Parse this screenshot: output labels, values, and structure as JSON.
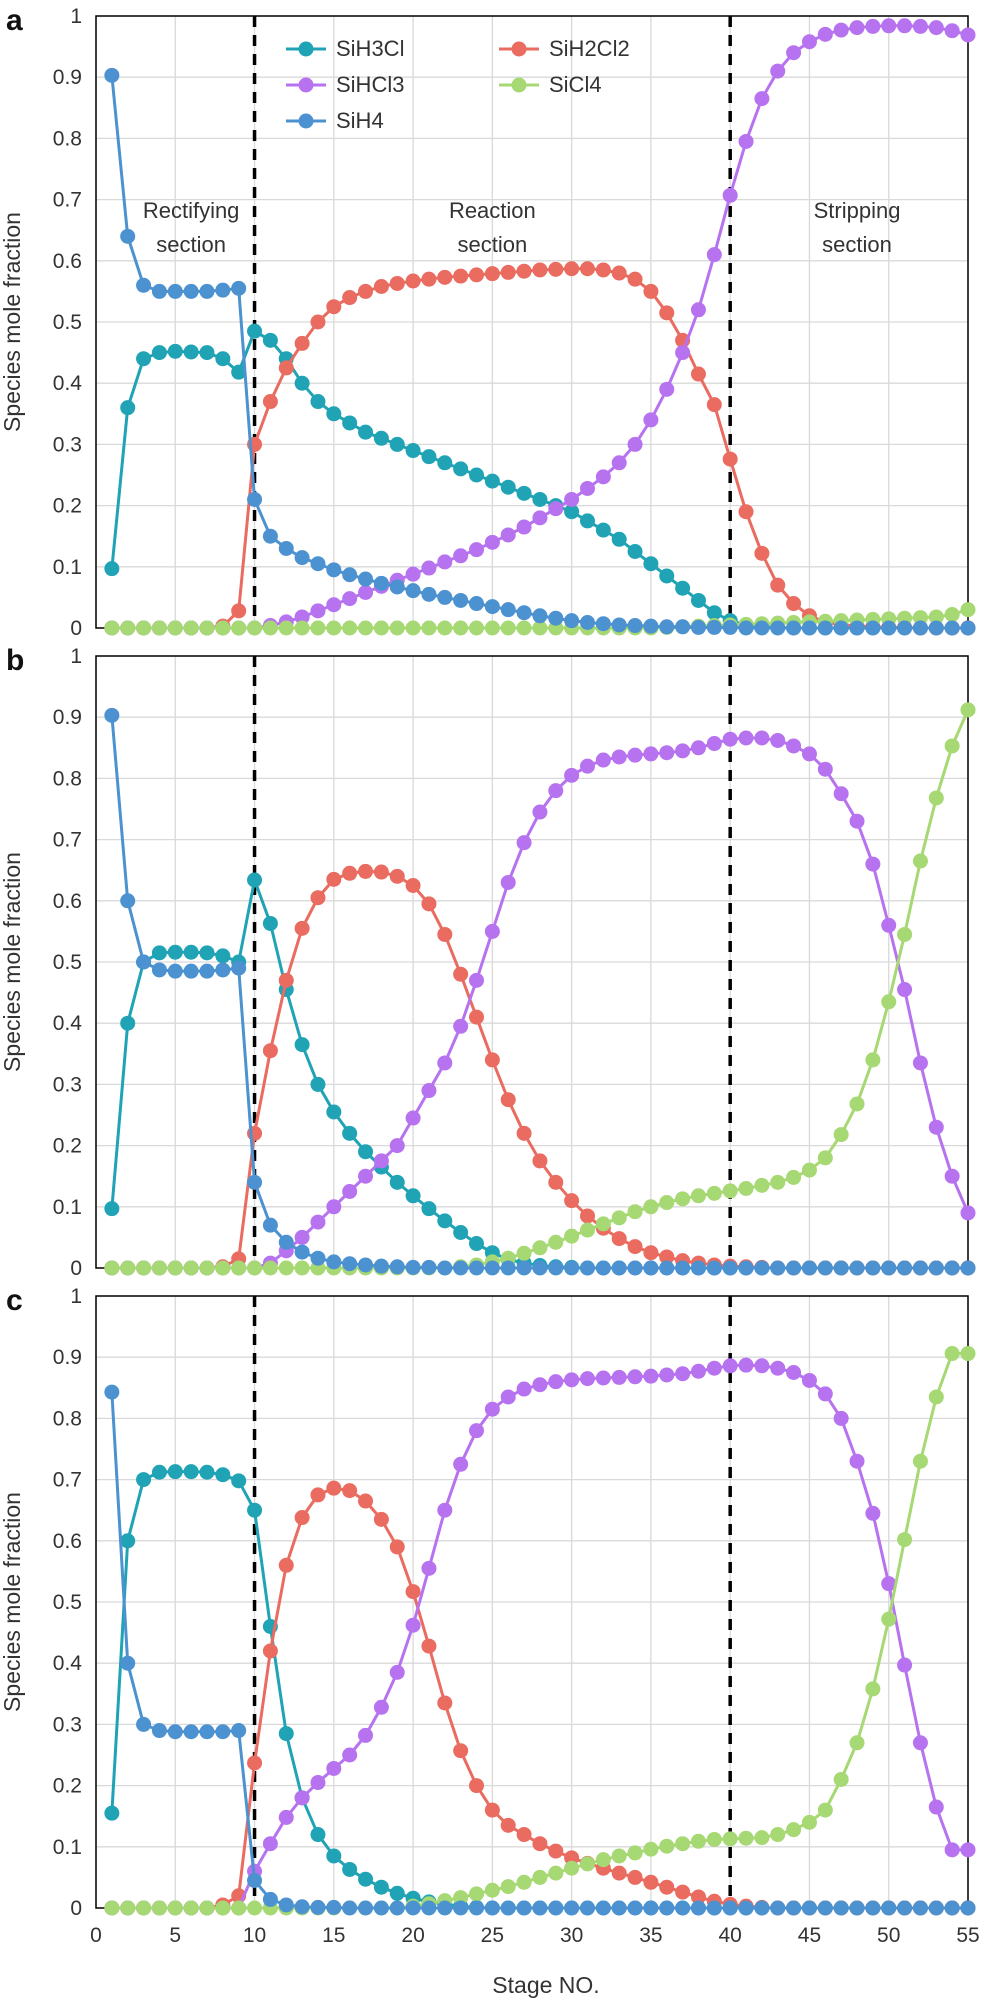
{
  "chart_data": {
    "type": "line",
    "xlabel": "Stage NO.",
    "xlim": [
      0,
      55
    ],
    "x_ticks": [
      "0",
      "5",
      "10",
      "15",
      "20",
      "25",
      "30",
      "35",
      "40",
      "45",
      "50",
      "55"
    ],
    "y_ticks": [
      "0",
      "0.1",
      "0.2",
      "0.3",
      "0.4",
      "0.5",
      "0.6",
      "0.7",
      "0.8",
      "0.9",
      "1"
    ],
    "grid": true,
    "legend": {
      "placement": "top-center of panel a",
      "items": [
        "SiH3Cl",
        "SiH2Cl2",
        "SiHCl3",
        "SiCl4",
        "SiH4"
      ]
    },
    "series_colors": {
      "SiH3Cl": "#1fa3b5",
      "SiH2Cl2": "#ea6b60",
      "SiHCl3": "#b772f0",
      "SiCl4": "#a6d873",
      "SiH4": "#4c92d0"
    },
    "section_divider_x": [
      10,
      40
    ],
    "x": [
      1,
      2,
      3,
      4,
      5,
      6,
      7,
      8,
      9,
      10,
      11,
      12,
      13,
      14,
      15,
      16,
      17,
      18,
      19,
      20,
      21,
      22,
      23,
      24,
      25,
      26,
      27,
      28,
      29,
      30,
      31,
      32,
      33,
      34,
      35,
      36,
      37,
      38,
      39,
      40,
      41,
      42,
      43,
      44,
      45,
      46,
      47,
      48,
      49,
      50,
      51,
      52,
      53,
      54,
      55
    ],
    "panels": [
      {
        "label": "a",
        "ylabel": "Species mole fraction",
        "ylim": [
          0,
          1
        ],
        "annotations": [
          {
            "text": [
              "Rectifying",
              "section"
            ],
            "x": 6,
            "y": 0.67
          },
          {
            "text": [
              "Reaction",
              "section"
            ],
            "x": 25,
            "y": 0.67
          },
          {
            "text": [
              "Stripping",
              "section"
            ],
            "x": 48,
            "y": 0.67
          }
        ],
        "series": [
          {
            "name": "SiH3Cl",
            "values": [
              0.097,
              0.36,
              0.44,
              0.45,
              0.452,
              0.451,
              0.45,
              0.44,
              0.418,
              0.485,
              0.47,
              0.44,
              0.4,
              0.37,
              0.35,
              0.335,
              0.32,
              0.31,
              0.3,
              0.29,
              0.28,
              0.27,
              0.26,
              0.25,
              0.24,
              0.23,
              0.22,
              0.21,
              0.2,
              0.19,
              0.175,
              0.16,
              0.145,
              0.125,
              0.105,
              0.085,
              0.065,
              0.045,
              0.025,
              0.012,
              0.005,
              0.002,
              0.001,
              0,
              0,
              0,
              0,
              0,
              0,
              0,
              0,
              0,
              0,
              0,
              0
            ]
          },
          {
            "name": "SiH2Cl2",
            "values": [
              0,
              0,
              0,
              0,
              0,
              0,
              0,
              0.003,
              0.028,
              0.3,
              0.37,
              0.425,
              0.465,
              0.5,
              0.525,
              0.54,
              0.55,
              0.558,
              0.563,
              0.567,
              0.57,
              0.573,
              0.575,
              0.577,
              0.579,
              0.581,
              0.583,
              0.585,
              0.586,
              0.587,
              0.587,
              0.585,
              0.58,
              0.57,
              0.55,
              0.515,
              0.47,
              0.415,
              0.365,
              0.276,
              0.19,
              0.122,
              0.07,
              0.04,
              0.02,
              0.01,
              0.005,
              0.003,
              0.002,
              0.001,
              0.001,
              0,
              0,
              0,
              0
            ]
          },
          {
            "name": "SiHCl3",
            "values": [
              0,
              0,
              0,
              0,
              0,
              0,
              0,
              0,
              0,
              0,
              0.004,
              0.01,
              0.018,
              0.028,
              0.038,
              0.048,
              0.058,
              0.068,
              0.078,
              0.088,
              0.098,
              0.108,
              0.118,
              0.128,
              0.14,
              0.152,
              0.165,
              0.18,
              0.195,
              0.21,
              0.228,
              0.247,
              0.27,
              0.3,
              0.34,
              0.39,
              0.45,
              0.52,
              0.61,
              0.707,
              0.795,
              0.865,
              0.91,
              0.94,
              0.958,
              0.97,
              0.977,
              0.981,
              0.983,
              0.984,
              0.984,
              0.983,
              0.981,
              0.976,
              0.969
            ]
          },
          {
            "name": "SiCl4",
            "values": [
              0,
              0,
              0,
              0,
              0,
              0,
              0,
              0,
              0,
              0,
              0,
              0,
              0,
              0,
              0,
              0,
              0,
              0,
              0,
              0,
              0,
              0,
              0,
              0,
              0,
              0,
              0,
              0,
              0,
              0,
              0,
              0,
              0,
              0,
              0,
              0.001,
              0.002,
              0.003,
              0.004,
              0.005,
              0.006,
              0.007,
              0.008,
              0.009,
              0.01,
              0.011,
              0.012,
              0.013,
              0.014,
              0.015,
              0.016,
              0.017,
              0.018,
              0.022,
              0.03
            ]
          },
          {
            "name": "SiH4",
            "values": [
              0.903,
              0.64,
              0.56,
              0.55,
              0.55,
              0.55,
              0.55,
              0.552,
              0.555,
              0.21,
              0.15,
              0.13,
              0.115,
              0.105,
              0.095,
              0.087,
              0.08,
              0.073,
              0.067,
              0.061,
              0.055,
              0.05,
              0.045,
              0.04,
              0.035,
              0.03,
              0.025,
              0.02,
              0.016,
              0.012,
              0.009,
              0.007,
              0.005,
              0.004,
              0.003,
              0.002,
              0.002,
              0.001,
              0.001,
              0.001,
              0,
              0,
              0,
              0,
              0,
              0,
              0,
              0,
              0,
              0,
              0,
              0,
              0,
              0,
              0
            ]
          }
        ]
      },
      {
        "label": "b",
        "ylabel": "Species mole fraction",
        "ylim": [
          0,
          1
        ],
        "annotations": [],
        "series": [
          {
            "name": "SiH3Cl",
            "values": [
              0.097,
              0.4,
              0.5,
              0.515,
              0.516,
              0.516,
              0.515,
              0.51,
              0.5,
              0.634,
              0.563,
              0.455,
              0.365,
              0.3,
              0.255,
              0.22,
              0.19,
              0.165,
              0.14,
              0.118,
              0.097,
              0.077,
              0.058,
              0.04,
              0.025,
              0.014,
              0.008,
              0.004,
              0.002,
              0.001,
              0,
              0,
              0,
              0,
              0,
              0,
              0,
              0,
              0,
              0,
              0,
              0,
              0,
              0,
              0,
              0,
              0,
              0,
              0,
              0,
              0,
              0,
              0,
              0,
              0
            ]
          },
          {
            "name": "SiH2Cl2",
            "values": [
              0,
              0,
              0,
              0,
              0,
              0,
              0,
              0.002,
              0.015,
              0.22,
              0.355,
              0.47,
              0.555,
              0.605,
              0.635,
              0.645,
              0.648,
              0.647,
              0.64,
              0.625,
              0.595,
              0.545,
              0.48,
              0.41,
              0.34,
              0.275,
              0.22,
              0.175,
              0.14,
              0.11,
              0.085,
              0.065,
              0.048,
              0.035,
              0.025,
              0.018,
              0.012,
              0.008,
              0.005,
              0.003,
              0.002,
              0.001,
              0,
              0,
              0,
              0,
              0,
              0,
              0,
              0,
              0,
              0,
              0,
              0,
              0
            ]
          },
          {
            "name": "SiHCl3",
            "values": [
              0,
              0,
              0,
              0,
              0,
              0,
              0,
              0,
              0,
              0,
              0.008,
              0.028,
              0.05,
              0.075,
              0.1,
              0.125,
              0.15,
              0.175,
              0.2,
              0.245,
              0.29,
              0.335,
              0.395,
              0.47,
              0.55,
              0.63,
              0.695,
              0.745,
              0.78,
              0.805,
              0.82,
              0.83,
              0.835,
              0.838,
              0.84,
              0.842,
              0.845,
              0.85,
              0.857,
              0.864,
              0.866,
              0.866,
              0.862,
              0.853,
              0.84,
              0.815,
              0.775,
              0.73,
              0.66,
              0.56,
              0.455,
              0.335,
              0.23,
              0.15,
              0.09
            ]
          },
          {
            "name": "SiCl4",
            "values": [
              0,
              0,
              0,
              0,
              0,
              0,
              0,
              0,
              0,
              0,
              0,
              0,
              0,
              0,
              0,
              0,
              0,
              0,
              0,
              0,
              0,
              0,
              0.002,
              0.005,
              0.01,
              0.016,
              0.024,
              0.033,
              0.042,
              0.052,
              0.062,
              0.072,
              0.082,
              0.092,
              0.1,
              0.107,
              0.113,
              0.118,
              0.122,
              0.126,
              0.13,
              0.135,
              0.14,
              0.148,
              0.16,
              0.18,
              0.218,
              0.268,
              0.34,
              0.435,
              0.545,
              0.665,
              0.768,
              0.853,
              0.912
            ]
          },
          {
            "name": "SiH4",
            "values": [
              0.903,
              0.6,
              0.5,
              0.487,
              0.485,
              0.485,
              0.485,
              0.487,
              0.49,
              0.14,
              0.07,
              0.042,
              0.026,
              0.016,
              0.01,
              0.007,
              0.005,
              0.003,
              0.002,
              0.001,
              0.001,
              0,
              0,
              0,
              0,
              0,
              0,
              0,
              0,
              0,
              0,
              0,
              0,
              0,
              0,
              0,
              0,
              0,
              0,
              0,
              0,
              0,
              0,
              0,
              0,
              0,
              0,
              0,
              0,
              0,
              0,
              0,
              0,
              0,
              0
            ]
          }
        ]
      },
      {
        "label": "c",
        "ylabel": "Species mole fraction",
        "ylim": [
          0,
          1
        ],
        "annotations": [],
        "series": [
          {
            "name": "SiH3Cl",
            "values": [
              0.155,
              0.6,
              0.7,
              0.712,
              0.713,
              0.713,
              0.712,
              0.708,
              0.698,
              0.65,
              0.46,
              0.285,
              0.18,
              0.12,
              0.085,
              0.063,
              0.047,
              0.034,
              0.024,
              0.016,
              0.01,
              0.006,
              0.003,
              0.001,
              0,
              0,
              0,
              0,
              0,
              0,
              0,
              0,
              0,
              0,
              0,
              0,
              0,
              0,
              0,
              0,
              0,
              0,
              0,
              0,
              0,
              0,
              0,
              0,
              0,
              0,
              0,
              0,
              0,
              0,
              0
            ]
          },
          {
            "name": "SiH2Cl2",
            "values": [
              0,
              0,
              0,
              0,
              0,
              0,
              0,
              0.005,
              0.02,
              0.237,
              0.42,
              0.56,
              0.638,
              0.675,
              0.686,
              0.682,
              0.665,
              0.635,
              0.59,
              0.517,
              0.428,
              0.335,
              0.257,
              0.2,
              0.16,
              0.135,
              0.12,
              0.105,
              0.093,
              0.082,
              0.073,
              0.065,
              0.057,
              0.05,
              0.042,
              0.034,
              0.026,
              0.018,
              0.011,
              0.006,
              0.003,
              0.001,
              0,
              0,
              0,
              0,
              0,
              0,
              0,
              0,
              0,
              0,
              0,
              0,
              0
            ]
          },
          {
            "name": "SiHCl3",
            "values": [
              0,
              0,
              0,
              0,
              0,
              0,
              0,
              0,
              0,
              0.06,
              0.105,
              0.148,
              0.18,
              0.205,
              0.228,
              0.25,
              0.282,
              0.328,
              0.385,
              0.462,
              0.555,
              0.65,
              0.725,
              0.78,
              0.815,
              0.835,
              0.848,
              0.855,
              0.86,
              0.863,
              0.865,
              0.866,
              0.867,
              0.868,
              0.869,
              0.871,
              0.873,
              0.877,
              0.882,
              0.886,
              0.887,
              0.886,
              0.882,
              0.875,
              0.862,
              0.84,
              0.8,
              0.73,
              0.645,
              0.53,
              0.397,
              0.27,
              0.165,
              0.095,
              0.095
            ]
          },
          {
            "name": "SiCl4",
            "values": [
              0,
              0,
              0,
              0,
              0,
              0,
              0,
              0,
              0,
              0,
              0,
              0,
              0,
              0,
              0,
              0,
              0,
              0,
              0,
              0.003,
              0.007,
              0.012,
              0.017,
              0.023,
              0.029,
              0.035,
              0.042,
              0.05,
              0.057,
              0.065,
              0.072,
              0.079,
              0.085,
              0.09,
              0.096,
              0.101,
              0.105,
              0.109,
              0.112,
              0.113,
              0.114,
              0.115,
              0.12,
              0.128,
              0.14,
              0.16,
              0.21,
              0.27,
              0.358,
              0.472,
              0.602,
              0.73,
              0.835,
              0.906,
              0.906
            ]
          },
          {
            "name": "SiH4",
            "values": [
              0.843,
              0.4,
              0.3,
              0.29,
              0.288,
              0.288,
              0.288,
              0.288,
              0.29,
              0.045,
              0.014,
              0.005,
              0.002,
              0.001,
              0.001,
              0,
              0,
              0,
              0,
              0,
              0,
              0,
              0,
              0,
              0,
              0,
              0,
              0,
              0,
              0,
              0,
              0,
              0,
              0,
              0,
              0,
              0,
              0,
              0,
              0,
              0,
              0,
              0,
              0,
              0,
              0,
              0,
              0,
              0,
              0,
              0,
              0,
              0,
              0,
              0
            ]
          }
        ]
      }
    ]
  }
}
